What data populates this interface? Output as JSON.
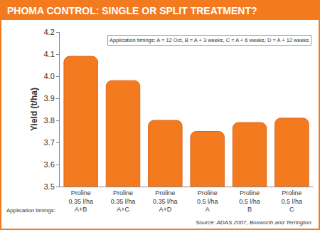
{
  "chart_data": {
    "type": "bar",
    "title": "PHOMA CONTROL: SINGLE OR SPLIT TREATMENT?",
    "y_label": "Yield (t/ha)",
    "categories": [
      "Proline\n0.35 l/ha",
      "Proline\n0.35 l/ha",
      "Proline\n0.35 l/ha",
      "Proline\n0.5 l/ha",
      "Proline\n0.5 l/ha",
      "Proline\n0.5 l/ha"
    ],
    "timings_label": "Application timings:",
    "timings": [
      "A+B",
      "A+C",
      "A+D",
      "A",
      "B",
      "C"
    ],
    "values": [
      4.09,
      3.98,
      3.8,
      3.75,
      3.79,
      3.81
    ],
    "color": "#f47a20",
    "ylim": [
      3.5,
      4.2
    ],
    "yticks": [
      3.5,
      3.6,
      3.7,
      3.8,
      3.9,
      {
        "value": 4,
        "label": "4.0"
      },
      4.1,
      4.2
    ],
    "grid": false,
    "annotations": [
      "Application timings: A = 12 Oct, B = A + 3 weeks, C = A + 6 weeks, D = A + 12 weeks"
    ],
    "source": "Source: ADAS 2007, Boxworth and Terrington"
  }
}
